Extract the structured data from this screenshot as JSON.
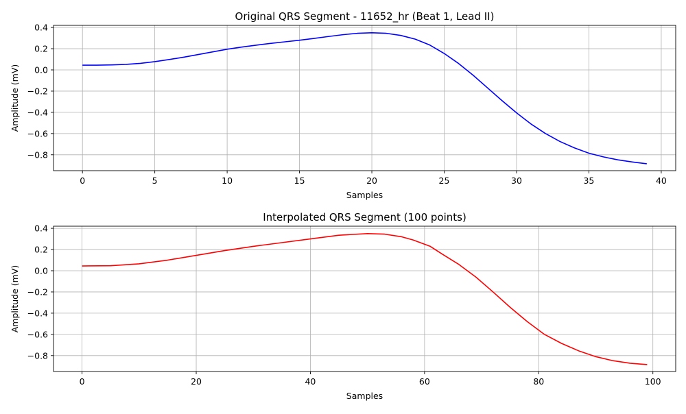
{
  "chart_data": [
    {
      "type": "line",
      "title": "Original QRS Segment - 11652_hr (Beat 1, Lead II)",
      "xlabel": "Samples",
      "ylabel": "Amplitude (mV)",
      "xlim": [
        -2,
        41
      ],
      "ylim": [
        -0.95,
        0.42
      ],
      "xticks": [
        0,
        5,
        10,
        15,
        20,
        25,
        30,
        35,
        40
      ],
      "xtick_labels": [
        "0",
        "5",
        "10",
        "15",
        "20",
        "25",
        "30",
        "35",
        "40"
      ],
      "yticks": [
        -0.8,
        -0.6,
        -0.4,
        -0.2,
        0.0,
        0.2,
        0.4
      ],
      "ytick_labels": [
        "−0.8",
        "−0.6",
        "−0.4",
        "−0.2",
        "0.0",
        "0.2",
        "0.4"
      ],
      "grid": true,
      "series": [
        {
          "color": "#0000ff",
          "x": [
            0,
            1,
            2,
            3,
            4,
            5,
            6,
            7,
            8,
            9,
            10,
            11,
            12,
            13,
            14,
            15,
            16,
            17,
            18,
            19,
            20,
            21,
            22,
            23,
            24,
            25,
            26,
            27,
            28,
            29,
            30,
            31,
            32,
            33,
            34,
            35,
            36,
            37,
            38,
            39
          ],
          "y": [
            0.045,
            0.045,
            0.047,
            0.052,
            0.062,
            0.078,
            0.098,
            0.12,
            0.145,
            0.17,
            0.195,
            0.215,
            0.233,
            0.25,
            0.265,
            0.28,
            0.297,
            0.315,
            0.332,
            0.345,
            0.35,
            0.345,
            0.325,
            0.29,
            0.235,
            0.155,
            0.06,
            -0.05,
            -0.17,
            -0.29,
            -0.405,
            -0.51,
            -0.6,
            -0.675,
            -0.735,
            -0.785,
            -0.82,
            -0.848,
            -0.868,
            -0.885
          ]
        }
      ]
    },
    {
      "type": "line",
      "title": "Interpolated QRS Segment (100 points)",
      "xlabel": "Samples",
      "ylabel": "Amplitude (mV)",
      "xlim": [
        -5,
        104
      ],
      "ylim": [
        -0.95,
        0.42
      ],
      "xticks": [
        0,
        20,
        40,
        60,
        80,
        100
      ],
      "xtick_labels": [
        "0",
        "20",
        "40",
        "60",
        "80",
        "100"
      ],
      "yticks": [
        -0.8,
        -0.6,
        -0.4,
        -0.2,
        0.0,
        0.2,
        0.4
      ],
      "ytick_labels": [
        "−0.8",
        "−0.6",
        "−0.4",
        "−0.2",
        "0.0",
        "0.2",
        "0.4"
      ],
      "grid": true,
      "series": [
        {
          "color": "#ff0000",
          "x": [
            0,
            5,
            10,
            15,
            20,
            25,
            30,
            35,
            40,
            45,
            50,
            53,
            56,
            58,
            61,
            63,
            66,
            69,
            72,
            75,
            78,
            81,
            84,
            87,
            90,
            93,
            96,
            99
          ],
          "y": [
            0.045,
            0.047,
            0.065,
            0.1,
            0.145,
            0.19,
            0.23,
            0.265,
            0.3,
            0.335,
            0.35,
            0.345,
            0.32,
            0.29,
            0.23,
            0.16,
            0.06,
            -0.06,
            -0.2,
            -0.345,
            -0.48,
            -0.6,
            -0.685,
            -0.755,
            -0.81,
            -0.848,
            -0.872,
            -0.885
          ]
        }
      ]
    }
  ]
}
